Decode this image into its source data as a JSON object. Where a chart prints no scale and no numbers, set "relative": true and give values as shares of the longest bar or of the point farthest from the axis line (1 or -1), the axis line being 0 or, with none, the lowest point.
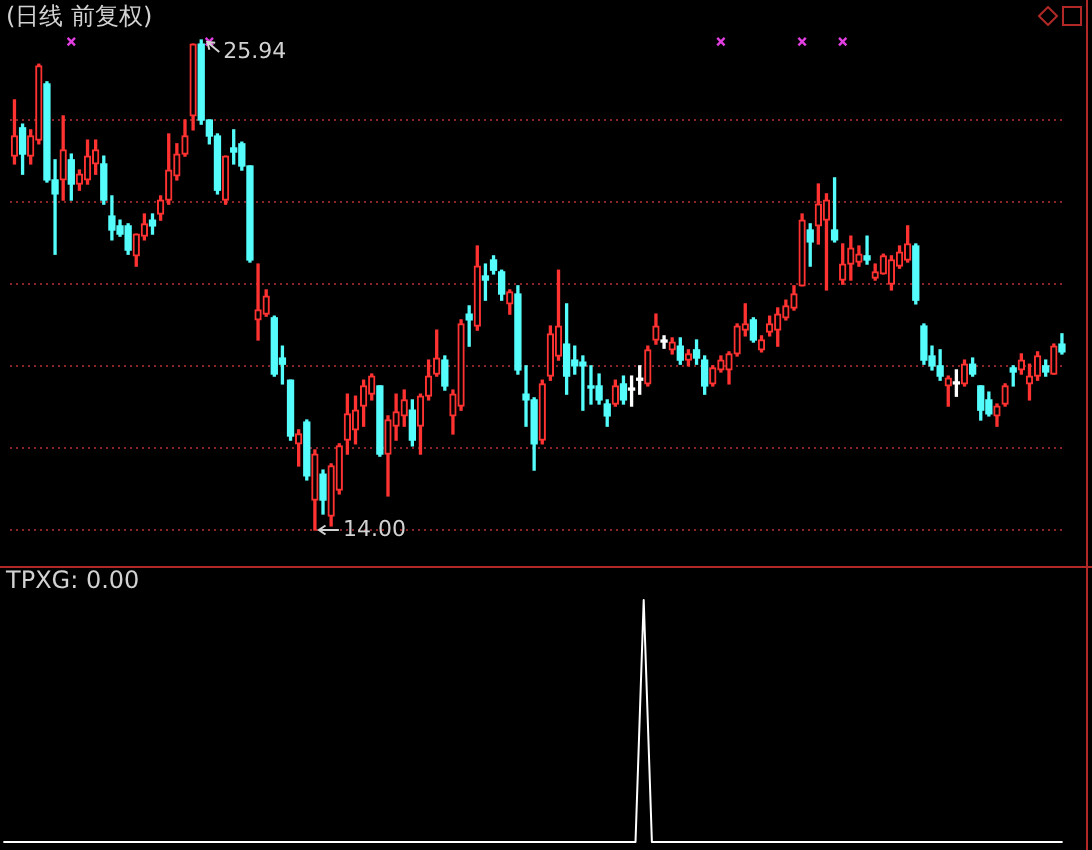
{
  "chart_data": [
    {
      "type": "candlestick",
      "title": "(日线 前复权)",
      "categories": [
        null,
        null,
        null,
        null,
        null,
        null,
        null,
        null,
        null,
        null,
        null,
        null,
        null,
        null,
        null,
        null,
        null,
        null,
        null,
        null,
        null,
        null,
        null,
        null,
        null,
        null,
        null,
        null,
        null,
        null,
        null,
        null,
        null,
        null,
        null,
        null,
        null,
        null,
        null,
        null,
        null,
        null,
        null,
        null,
        null,
        null,
        null,
        null,
        null,
        null,
        null,
        null,
        null,
        null,
        null,
        null,
        null,
        null,
        null,
        null,
        null,
        null,
        null,
        null,
        null,
        null,
        null,
        null,
        null,
        null,
        null,
        null,
        null,
        null,
        null,
        null,
        null,
        null,
        null,
        null,
        null,
        null,
        null,
        null,
        null,
        null,
        null,
        null,
        null,
        null,
        null,
        null,
        null,
        null,
        null,
        null,
        null,
        null,
        null,
        null,
        null,
        null,
        null,
        null,
        null,
        null,
        null,
        null,
        null,
        null,
        null,
        null,
        null,
        null,
        null,
        null,
        null,
        null,
        null,
        null,
        null,
        null,
        null,
        null,
        null,
        null,
        null,
        null,
        null,
        null
      ],
      "ohlc": [
        [
          23.11,
          24.48,
          22.92,
          23.6
        ],
        [
          23.8,
          23.89,
          22.67,
          23.16
        ],
        [
          23.11,
          23.75,
          22.92,
          23.6
        ],
        [
          23.5,
          25.35,
          23.41,
          25.31
        ],
        [
          24.87,
          24.92,
          22.48,
          22.53
        ],
        [
          22.53,
          23.02,
          20.72,
          22.19
        ],
        [
          22.53,
          24.09,
          22.04,
          23.26
        ],
        [
          23.02,
          23.16,
          22.04,
          22.43
        ],
        [
          22.43,
          22.77,
          22.28,
          22.67
        ],
        [
          22.53,
          23.5,
          22.43,
          23.11
        ],
        [
          22.92,
          23.5,
          22.67,
          23.26
        ],
        [
          22.92,
          23.11,
          21.94,
          22.04
        ],
        [
          21.65,
          22.14,
          21.07,
          21.31
        ],
        [
          21.41,
          21.55,
          21.16,
          21.21
        ],
        [
          21.41,
          21.46,
          20.72,
          20.82
        ],
        [
          20.68,
          21.21,
          20.43,
          21.21
        ],
        [
          21.16,
          21.7,
          21.07,
          21.46
        ],
        [
          21.55,
          21.7,
          21.21,
          21.41
        ],
        [
          21.7,
          22.14,
          21.55,
          22.04
        ],
        [
          22.04,
          23.65,
          21.94,
          22.77
        ],
        [
          22.63,
          23.41,
          22.53,
          23.16
        ],
        [
          23.16,
          23.99,
          23.11,
          23.6
        ],
        [
          24.09,
          25.84,
          23.75,
          25.84
        ],
        [
          25.84,
          25.94,
          23.89,
          23.99
        ],
        [
          23.99,
          23.99,
          23.41,
          23.6
        ],
        [
          23.6,
          23.65,
          22.19,
          22.28
        ],
        [
          22.04,
          23.11,
          21.94,
          23.11
        ],
        [
          23.31,
          23.75,
          22.92,
          23.21
        ],
        [
          23.41,
          23.45,
          22.77,
          22.87
        ],
        [
          22.87,
          22.87,
          20.53,
          20.58
        ],
        [
          19.12,
          20.48,
          18.63,
          19.36
        ],
        [
          19.26,
          19.85,
          19.21,
          19.7
        ],
        [
          19.17,
          19.21,
          17.75,
          17.8
        ],
        [
          18.19,
          18.48,
          17.56,
          18.04
        ],
        [
          17.65,
          17.65,
          16.19,
          16.29
        ],
        [
          16.1,
          16.44,
          15.56,
          16.34
        ],
        [
          16.63,
          16.68,
          15.22,
          15.32
        ],
        [
          14.73,
          15.95,
          14.0,
          15.85
        ],
        [
          15.36,
          15.46,
          14.39,
          14.73
        ],
        [
          14.34,
          15.61,
          14.1,
          15.56
        ],
        [
          14.97,
          16.1,
          14.88,
          16.05
        ],
        [
          16.19,
          17.31,
          15.85,
          16.83
        ],
        [
          16.44,
          17.26,
          16.1,
          16.92
        ],
        [
          17.02,
          17.65,
          16.53,
          17.51
        ],
        [
          17.31,
          17.8,
          17.17,
          17.75
        ],
        [
          17.51,
          17.51,
          15.8,
          15.85
        ],
        [
          15.85,
          16.78,
          14.83,
          16.68
        ],
        [
          16.53,
          17.31,
          16.19,
          16.88
        ],
        [
          16.78,
          17.41,
          16.53,
          17.17
        ],
        [
          16.92,
          17.17,
          16.05,
          16.19
        ],
        [
          16.53,
          17.31,
          15.85,
          17.26
        ],
        [
          17.26,
          18.14,
          17.17,
          17.75
        ],
        [
          17.8,
          18.87,
          17.75,
          18.19
        ],
        [
          18.14,
          18.24,
          17.41,
          17.51
        ],
        [
          16.78,
          17.41,
          16.34,
          17.31
        ],
        [
          17.02,
          19.12,
          16.92,
          19.02
        ],
        [
          19.26,
          19.46,
          18.48,
          19.12
        ],
        [
          18.97,
          20.92,
          18.87,
          20.43
        ],
        [
          20.19,
          20.48,
          19.6,
          20.09
        ],
        [
          20.58,
          20.68,
          20.24,
          20.33
        ],
        [
          20.29,
          20.33,
          19.6,
          19.75
        ],
        [
          19.51,
          19.85,
          19.26,
          19.8
        ],
        [
          19.75,
          19.95,
          17.8,
          17.9
        ],
        [
          17.31,
          18.0,
          16.53,
          17.17
        ],
        [
          17.17,
          17.22,
          15.46,
          16.1
        ],
        [
          16.19,
          17.65,
          16.1,
          17.56
        ],
        [
          17.75,
          18.97,
          17.65,
          18.78
        ],
        [
          18.24,
          20.33,
          18.14,
          18.97
        ],
        [
          18.53,
          19.51,
          17.31,
          17.75
        ],
        [
          18.14,
          18.48,
          17.8,
          18.0
        ],
        [
          18.09,
          18.24,
          16.92,
          18.0
        ],
        [
          17.51,
          18.0,
          17.07,
          17.46
        ],
        [
          17.51,
          17.8,
          17.07,
          17.17
        ],
        [
          17.07,
          17.17,
          16.53,
          16.78
        ],
        [
          17.07,
          17.65,
          17.02,
          17.51
        ],
        [
          17.56,
          17.75,
          17.07,
          17.17
        ],
        [
          17.41,
          17.75,
          17.02,
          17.41
        ],
        [
          17.65,
          18.0,
          17.31,
          17.65
        ],
        [
          17.56,
          18.48,
          17.51,
          18.39
        ],
        [
          18.63,
          19.26,
          18.53,
          18.97
        ],
        [
          18.58,
          18.73,
          18.43,
          18.58
        ],
        [
          18.39,
          18.68,
          18.29,
          18.58
        ],
        [
          18.48,
          18.68,
          18.04,
          18.14
        ],
        [
          18.14,
          18.39,
          18.0,
          18.29
        ],
        [
          18.39,
          18.63,
          18.04,
          18.19
        ],
        [
          18.14,
          18.24,
          17.31,
          17.51
        ],
        [
          17.56,
          18.0,
          17.51,
          17.95
        ],
        [
          17.9,
          18.24,
          17.85,
          18.14
        ],
        [
          17.9,
          18.34,
          17.56,
          18.29
        ],
        [
          18.29,
          19.02,
          18.24,
          18.97
        ],
        [
          18.87,
          19.51,
          18.73,
          19.02
        ],
        [
          19.12,
          19.17,
          18.58,
          18.63
        ],
        [
          18.39,
          18.73,
          18.34,
          18.63
        ],
        [
          18.82,
          19.21,
          18.73,
          19.02
        ],
        [
          18.87,
          19.41,
          18.48,
          19.26
        ],
        [
          19.17,
          19.6,
          19.12,
          19.46
        ],
        [
          19.41,
          19.95,
          19.36,
          19.75
        ],
        [
          19.95,
          21.7,
          19.95,
          21.55
        ],
        [
          21.31,
          21.46,
          20.43,
          21.02
        ],
        [
          21.41,
          22.43,
          20.97,
          21.94
        ],
        [
          21.55,
          22.19,
          19.85,
          22.04
        ],
        [
          21.31,
          22.58,
          21.02,
          21.07
        ],
        [
          20.09,
          20.97,
          19.99,
          20.48
        ],
        [
          20.48,
          21.16,
          20.09,
          20.87
        ],
        [
          20.53,
          20.92,
          20.43,
          20.72
        ],
        [
          20.68,
          21.16,
          20.48,
          20.58
        ],
        [
          20.14,
          20.48,
          20.09,
          20.29
        ],
        [
          20.24,
          20.72,
          20.24,
          20.68
        ],
        [
          19.99,
          20.68,
          19.85,
          20.58
        ],
        [
          20.43,
          20.92,
          20.38,
          20.77
        ],
        [
          20.58,
          21.41,
          20.53,
          20.97
        ],
        [
          20.92,
          20.97,
          19.51,
          19.6
        ],
        [
          18.97,
          19.02,
          18.04,
          18.14
        ],
        [
          18.24,
          18.48,
          17.9,
          18.0
        ],
        [
          18.0,
          18.39,
          17.65,
          17.75
        ],
        [
          17.51,
          17.75,
          17.02,
          17.7
        ],
        [
          17.56,
          17.9,
          17.26,
          17.56
        ],
        [
          17.56,
          18.14,
          17.51,
          18.04
        ],
        [
          18.04,
          18.19,
          17.75,
          17.8
        ],
        [
          17.51,
          17.51,
          16.68,
          16.92
        ],
        [
          17.17,
          17.36,
          16.78,
          16.83
        ],
        [
          16.78,
          17.07,
          16.53,
          17.02
        ],
        [
          17.07,
          17.56,
          17.02,
          17.51
        ],
        [
          17.95,
          18.0,
          17.51,
          17.85
        ],
        [
          17.9,
          18.29,
          17.8,
          18.14
        ],
        [
          17.56,
          18.04,
          17.17,
          17.75
        ],
        [
          17.75,
          18.34,
          17.65,
          18.24
        ],
        [
          18.0,
          18.14,
          17.75,
          17.85
        ],
        [
          17.8,
          18.53,
          17.8,
          18.48
        ],
        [
          18.53,
          18.78,
          18.29,
          18.34
        ]
      ],
      "colors": [
        "#ff3232",
        "#54fcfc",
        "#ff3232",
        "#ff3232",
        "#54fcfc",
        "#54fcfc",
        "#ff3232",
        "#54fcfc",
        "#ff3232",
        "#ff3232",
        "#ff3232",
        "#54fcfc",
        "#54fcfc",
        "#54fcfc",
        "#54fcfc",
        "#ff3232",
        "#ff3232",
        "#54fcfc",
        "#ff3232",
        "#ff3232",
        "#ff3232",
        "#ff3232",
        "#ff3232",
        "#54fcfc",
        "#54fcfc",
        "#54fcfc",
        "#ff3232",
        "#54fcfc",
        "#54fcfc",
        "#54fcfc",
        "#ff3232",
        "#ff3232",
        "#54fcfc",
        "#54fcfc",
        "#54fcfc",
        "#ff3232",
        "#54fcfc",
        "#ff3232",
        "#54fcfc",
        "#ff3232",
        "#ff3232",
        "#ff3232",
        "#ff3232",
        "#ff3232",
        "#ff3232",
        "#54fcfc",
        "#ff3232",
        "#ff3232",
        "#ff3232",
        "#54fcfc",
        "#ff3232",
        "#ff3232",
        "#ff3232",
        "#54fcfc",
        "#ff3232",
        "#ff3232",
        "#54fcfc",
        "#ff3232",
        "#54fcfc",
        "#54fcfc",
        "#54fcfc",
        "#ff3232",
        "#54fcfc",
        "#54fcfc",
        "#54fcfc",
        "#ff3232",
        "#ff3232",
        "#ff3232",
        "#54fcfc",
        "#54fcfc",
        "#54fcfc",
        "#54fcfc",
        "#54fcfc",
        "#54fcfc",
        "#ff3232",
        "#54fcfc",
        "#ffffff",
        "#ffffff",
        "#ff3232",
        "#ff3232",
        "#ffffff",
        "#ff3232",
        "#54fcfc",
        "#ff3232",
        "#54fcfc",
        "#54fcfc",
        "#ff3232",
        "#ff3232",
        "#ff3232",
        "#ff3232",
        "#ff3232",
        "#54fcfc",
        "#ff3232",
        "#ff3232",
        "#ff3232",
        "#ff3232",
        "#ff3232",
        "#ff3232",
        "#54fcfc",
        "#ff3232",
        "#ff3232",
        "#54fcfc",
        "#ff3232",
        "#ff3232",
        "#ff3232",
        "#54fcfc",
        "#ff3232",
        "#ff3232",
        "#ff3232",
        "#ff3232",
        "#ff3232",
        "#54fcfc",
        "#54fcfc",
        "#54fcfc",
        "#54fcfc",
        "#ff3232",
        "#ffffff",
        "#ff3232",
        "#54fcfc",
        "#54fcfc",
        "#54fcfc",
        "#ff3232",
        "#ff3232",
        "#54fcfc",
        "#ff3232",
        "#ff3232",
        "#ff3232",
        "#54fcfc",
        "#ff3232",
        "#54fcfc"
      ],
      "yticks": [
        {
          "value": 14,
          "label": null
        },
        {
          "value": 16,
          "label": null
        },
        {
          "value": 18,
          "label": null
        },
        {
          "value": 20,
          "label": null
        },
        {
          "value": 22,
          "label": null
        },
        {
          "value": 24,
          "label": null
        }
      ],
      "grid": "y",
      "tick_labels": false,
      "annotations": [
        "25.94",
        "14.00"
      ],
      "series": [
        {
          "type": "scatter",
          "color": "#e23ee2",
          "marker": "cross",
          "values": [
            null,
            null,
            null,
            null,
            null,
            null,
            null,
            25.9,
            null,
            null,
            null,
            null,
            null,
            null,
            null,
            null,
            null,
            null,
            null,
            null,
            null,
            null,
            null,
            null,
            25.9,
            null,
            null,
            null,
            null,
            null,
            null,
            null,
            null,
            null,
            null,
            null,
            null,
            null,
            null,
            null,
            null,
            null,
            null,
            null,
            null,
            null,
            null,
            null,
            null,
            null,
            null,
            null,
            null,
            null,
            null,
            null,
            null,
            null,
            null,
            null,
            null,
            null,
            null,
            null,
            null,
            null,
            null,
            null,
            null,
            null,
            null,
            null,
            null,
            null,
            null,
            null,
            null,
            null,
            null,
            null,
            null,
            null,
            null,
            null,
            null,
            null,
            null,
            25.9,
            null,
            null,
            null,
            null,
            null,
            null,
            null,
            null,
            null,
            25.9,
            null,
            null,
            null,
            null,
            25.9,
            null,
            null,
            null,
            null,
            null,
            null,
            null,
            null,
            null,
            null,
            null,
            null,
            null,
            null,
            null,
            null,
            null,
            null,
            null,
            null,
            null,
            null,
            null,
            null,
            null,
            null,
            null
          ]
        }
      ]
    },
    {
      "type": "line",
      "title": "TPXG: 0.00",
      "categories": [
        null,
        null,
        null,
        null,
        null,
        null,
        null,
        null,
        null,
        null,
        null,
        null,
        null,
        null,
        null,
        null,
        null,
        null,
        null,
        null,
        null,
        null,
        null,
        null,
        null,
        null,
        null,
        null,
        null,
        null,
        null,
        null,
        null,
        null,
        null,
        null,
        null,
        null,
        null,
        null,
        null,
        null,
        null,
        null,
        null,
        null,
        null,
        null,
        null,
        null,
        null,
        null,
        null,
        null,
        null,
        null,
        null,
        null,
        null,
        null,
        null,
        null,
        null,
        null,
        null,
        null,
        null,
        null,
        null,
        null,
        null,
        null,
        null,
        null,
        null,
        null,
        null,
        null,
        null,
        null,
        null,
        null,
        null,
        null,
        null,
        null,
        null,
        null,
        null,
        null,
        null,
        null,
        null,
        null,
        null,
        null,
        null,
        null,
        null,
        null,
        null,
        null,
        null,
        null,
        null,
        null,
        null,
        null,
        null,
        null,
        null,
        null,
        null,
        null,
        null,
        null,
        null,
        null,
        null,
        null,
        null,
        null,
        null,
        null,
        null,
        null,
        null,
        null,
        null,
        null
      ],
      "relative": true,
      "tick_labels": false,
      "series": [
        {
          "color": "#ffffff",
          "values": [
            0,
            0,
            0,
            0,
            0,
            0,
            0,
            0,
            0,
            0,
            0,
            0,
            0,
            0,
            0,
            0,
            0,
            0,
            0,
            0,
            0,
            0,
            0,
            0,
            0,
            0,
            0,
            0,
            0,
            0,
            0,
            0,
            0,
            0,
            0,
            0,
            0,
            0,
            0,
            0,
            0,
            0,
            0,
            0,
            0,
            0,
            0,
            0,
            0,
            0,
            0,
            0,
            0,
            0,
            0,
            0,
            0,
            0,
            0,
            0,
            0,
            0,
            0,
            0,
            0,
            0,
            0,
            0,
            0,
            0,
            0,
            0,
            0,
            0,
            0,
            0,
            0,
            0,
            1,
            0,
            0,
            0,
            0,
            0,
            0,
            0,
            0,
            0,
            0,
            0,
            0,
            0,
            0,
            0,
            0,
            0,
            0,
            0,
            0,
            0,
            0,
            0,
            0,
            0,
            0,
            0,
            0,
            0,
            0,
            0,
            0,
            0,
            0,
            0,
            0,
            0,
            0,
            0,
            0,
            0,
            0,
            0,
            0,
            0,
            0,
            0,
            0,
            0,
            0,
            0
          ]
        }
      ]
    }
  ]
}
